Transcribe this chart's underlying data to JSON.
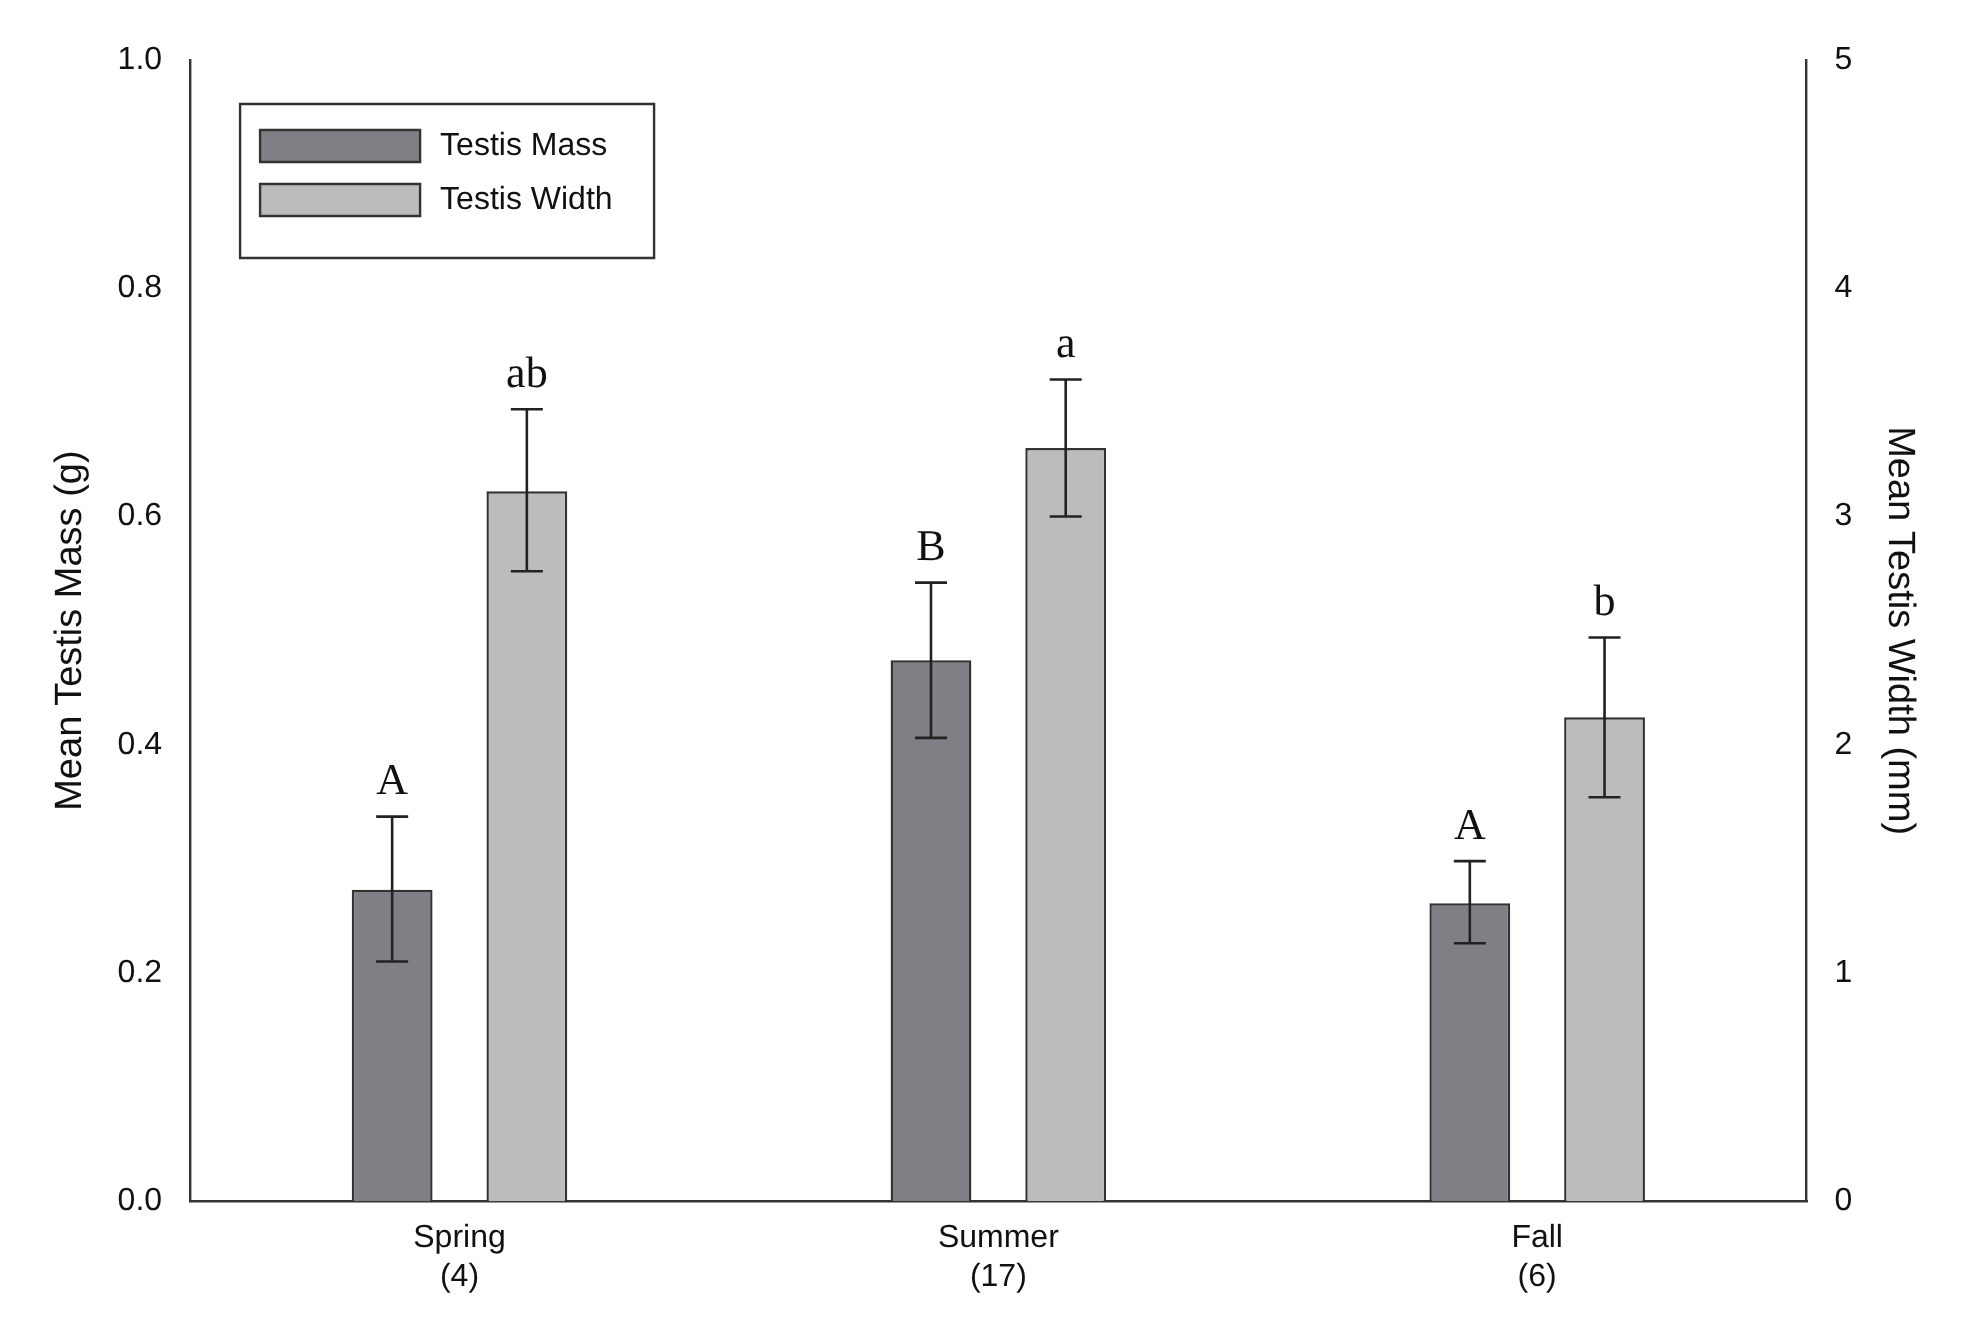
{
  "chart_data": {
    "type": "bar",
    "xlabel": null,
    "ylabel": "Mean Testis Mass (g)",
    "y2label": "Mean Testis Width (mm)",
    "categories": [
      "Spring\n(4)",
      "Summer\n(17)",
      "Fall\n(6)"
    ],
    "series": [
      {
        "name": "Testis Mass",
        "color": "#7f8085",
        "values": [
          0.273,
          0.474,
          0.261
        ],
        "errors": [
          [
            0.21,
            0.337
          ],
          [
            0.406,
            0.542
          ],
          [
            0.226,
            0.298
          ]
        ]
      },
      {
        "name": "Testis Width",
        "color": "#bbbcbe",
        "axis": "y2",
        "values": [
          3.11,
          3.3,
          2.12
        ],
        "errors": [
          [
            2.76,
            3.47
          ],
          [
            3.0,
            3.6
          ],
          [
            1.77,
            2.47
          ]
        ]
      }
    ],
    "ylim": [
      0,
      1
    ],
    "yticks": [
      {
        "value": 0,
        "label": "0.0"
      },
      0.2,
      0.4,
      0.6,
      0.8,
      {
        "value": 1,
        "label": "1.0"
      }
    ],
    "y2lim": [
      0,
      5
    ],
    "y2ticks": [
      0,
      1,
      2,
      3,
      4,
      5
    ],
    "annotations": [
      "A",
      "ab",
      "B",
      "a",
      "A",
      "b"
    ],
    "grid": false,
    "legend": "top left"
  }
}
